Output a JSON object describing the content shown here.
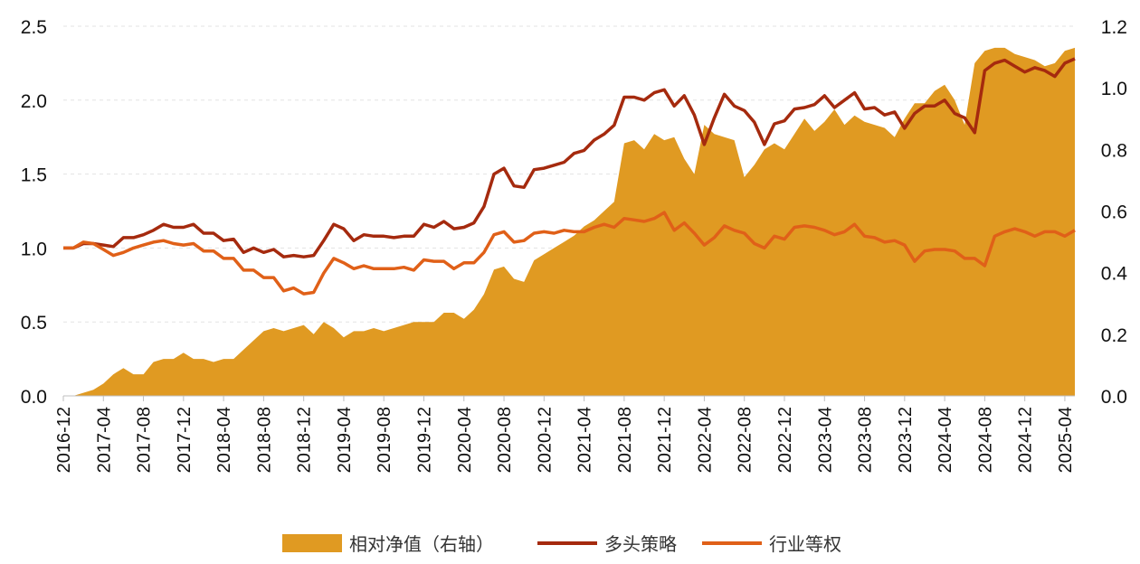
{
  "chart_data": {
    "type": "line",
    "title": "",
    "xlabel": "",
    "ylabel": "",
    "y_left": {
      "lim": [
        0,
        2.5
      ],
      "ticks": [
        "0.0",
        "0.5",
        "1.0",
        "1.5",
        "2.0",
        "2.5"
      ]
    },
    "y_right": {
      "lim": [
        0,
        1.2
      ],
      "ticks": [
        "0.0",
        "0.2",
        "0.4",
        "0.6",
        "0.8",
        "1.0",
        "1.2"
      ]
    },
    "x_tick_labels": [
      "2016-12",
      "2017-04",
      "2017-08",
      "2017-12",
      "2018-04",
      "2018-08",
      "2018-12",
      "2019-04",
      "2019-08",
      "2019-12",
      "2020-04",
      "2020-08",
      "2020-12",
      "2021-04",
      "2021-08",
      "2021-12",
      "2022-04",
      "2022-08",
      "2022-12",
      "2023-04",
      "2023-08",
      "2023-12",
      "2024-04",
      "2024-08",
      "2024-12",
      "2025-04"
    ],
    "grid": "horizontal dashed",
    "legend_position": "bottom",
    "x": [
      "2016-12",
      "2017-01",
      "2017-02",
      "2017-03",
      "2017-04",
      "2017-05",
      "2017-06",
      "2017-07",
      "2017-08",
      "2017-09",
      "2017-10",
      "2017-11",
      "2017-12",
      "2018-01",
      "2018-02",
      "2018-03",
      "2018-04",
      "2018-05",
      "2018-06",
      "2018-07",
      "2018-08",
      "2018-09",
      "2018-10",
      "2018-11",
      "2018-12",
      "2019-01",
      "2019-02",
      "2019-03",
      "2019-04",
      "2019-05",
      "2019-06",
      "2019-07",
      "2019-08",
      "2019-09",
      "2019-10",
      "2019-11",
      "2019-12",
      "2020-01",
      "2020-02",
      "2020-03",
      "2020-04",
      "2020-05",
      "2020-06",
      "2020-07",
      "2020-08",
      "2020-09",
      "2020-10",
      "2020-11",
      "2020-12",
      "2021-01",
      "2021-02",
      "2021-03",
      "2021-04",
      "2021-05",
      "2021-06",
      "2021-07",
      "2021-08",
      "2021-09",
      "2021-10",
      "2021-11",
      "2021-12",
      "2022-01",
      "2022-02",
      "2022-03",
      "2022-04",
      "2022-05",
      "2022-06",
      "2022-07",
      "2022-08",
      "2022-09",
      "2022-10",
      "2022-11",
      "2022-12",
      "2023-01",
      "2023-02",
      "2023-03",
      "2023-04",
      "2023-05",
      "2023-06",
      "2023-07",
      "2023-08",
      "2023-09",
      "2023-10",
      "2023-11",
      "2023-12",
      "2024-01",
      "2024-02",
      "2024-03",
      "2024-04",
      "2024-05",
      "2024-06",
      "2024-07",
      "2024-08",
      "2024-09",
      "2024-10",
      "2024-11",
      "2024-12",
      "2025-01",
      "2025-02",
      "2025-03",
      "2025-04",
      "2025-05"
    ],
    "series": [
      {
        "name": "相对净值（右轴）",
        "type": "area",
        "axis": "right",
        "color": "#E09A22",
        "values": [
          0.0,
          0.0,
          0.01,
          0.02,
          0.04,
          0.07,
          0.09,
          0.07,
          0.07,
          0.11,
          0.12,
          0.12,
          0.14,
          0.12,
          0.12,
          0.11,
          0.12,
          0.12,
          0.15,
          0.18,
          0.21,
          0.22,
          0.21,
          0.22,
          0.23,
          0.2,
          0.24,
          0.22,
          0.19,
          0.21,
          0.21,
          0.22,
          0.21,
          0.22,
          0.23,
          0.24,
          0.24,
          0.24,
          0.27,
          0.27,
          0.25,
          0.28,
          0.33,
          0.41,
          0.42,
          0.38,
          0.37,
          0.44,
          0.46,
          0.48,
          0.5,
          0.52,
          0.55,
          0.57,
          0.6,
          0.63,
          0.82,
          0.83,
          0.8,
          0.85,
          0.83,
          0.84,
          0.77,
          0.72,
          0.88,
          0.85,
          0.84,
          0.83,
          0.71,
          0.75,
          0.8,
          0.82,
          0.8,
          0.85,
          0.9,
          0.86,
          0.89,
          0.93,
          0.88,
          0.91,
          0.89,
          0.88,
          0.87,
          0.84,
          0.9,
          0.95,
          0.95,
          0.99,
          1.01,
          0.96,
          0.88,
          1.08,
          1.12,
          1.13,
          1.13,
          1.11,
          1.1,
          1.09,
          1.07,
          1.08,
          1.12,
          1.13
        ]
      },
      {
        "name": "多头策略",
        "type": "line",
        "axis": "left",
        "color": "#A52A0E",
        "values": [
          1.0,
          1.0,
          1.03,
          1.03,
          1.02,
          1.01,
          1.07,
          1.07,
          1.09,
          1.12,
          1.16,
          1.14,
          1.14,
          1.16,
          1.1,
          1.1,
          1.05,
          1.06,
          0.97,
          1.0,
          0.97,
          0.99,
          0.94,
          0.95,
          0.94,
          0.95,
          1.05,
          1.16,
          1.13,
          1.05,
          1.09,
          1.08,
          1.08,
          1.07,
          1.08,
          1.08,
          1.16,
          1.14,
          1.18,
          1.13,
          1.14,
          1.17,
          1.28,
          1.5,
          1.54,
          1.42,
          1.41,
          1.53,
          1.54,
          1.56,
          1.58,
          1.64,
          1.66,
          1.73,
          1.77,
          1.83,
          2.02,
          2.02,
          2.0,
          2.05,
          2.07,
          1.96,
          2.03,
          1.9,
          1.7,
          1.88,
          2.04,
          1.96,
          1.93,
          1.85,
          1.7,
          1.84,
          1.86,
          1.94,
          1.95,
          1.97,
          2.03,
          1.95,
          2.0,
          2.05,
          1.94,
          1.95,
          1.9,
          1.92,
          1.81,
          1.91,
          1.96,
          1.96,
          2.0,
          1.91,
          1.88,
          1.78,
          2.2,
          2.25,
          2.27,
          2.23,
          2.19,
          2.22,
          2.2,
          2.16,
          2.25,
          2.28
        ]
      },
      {
        "name": "行业等权",
        "type": "line",
        "axis": "left",
        "color": "#E06018",
        "values": [
          1.0,
          1.0,
          1.04,
          1.03,
          0.99,
          0.95,
          0.97,
          1.0,
          1.02,
          1.04,
          1.05,
          1.03,
          1.02,
          1.03,
          0.98,
          0.98,
          0.93,
          0.93,
          0.85,
          0.85,
          0.8,
          0.8,
          0.71,
          0.73,
          0.69,
          0.7,
          0.83,
          0.93,
          0.9,
          0.86,
          0.88,
          0.86,
          0.86,
          0.86,
          0.87,
          0.85,
          0.92,
          0.91,
          0.91,
          0.86,
          0.9,
          0.9,
          0.97,
          1.09,
          1.11,
          1.04,
          1.05,
          1.1,
          1.11,
          1.1,
          1.12,
          1.11,
          1.11,
          1.14,
          1.16,
          1.14,
          1.2,
          1.19,
          1.18,
          1.2,
          1.24,
          1.12,
          1.17,
          1.1,
          1.02,
          1.07,
          1.15,
          1.12,
          1.1,
          1.03,
          1.0,
          1.08,
          1.06,
          1.14,
          1.15,
          1.14,
          1.12,
          1.09,
          1.11,
          1.16,
          1.08,
          1.07,
          1.04,
          1.05,
          1.02,
          0.91,
          0.98,
          0.99,
          0.99,
          0.98,
          0.93,
          0.93,
          0.88,
          1.08,
          1.11,
          1.13,
          1.11,
          1.08,
          1.11,
          1.11,
          1.08,
          1.12
        ]
      }
    ]
  }
}
